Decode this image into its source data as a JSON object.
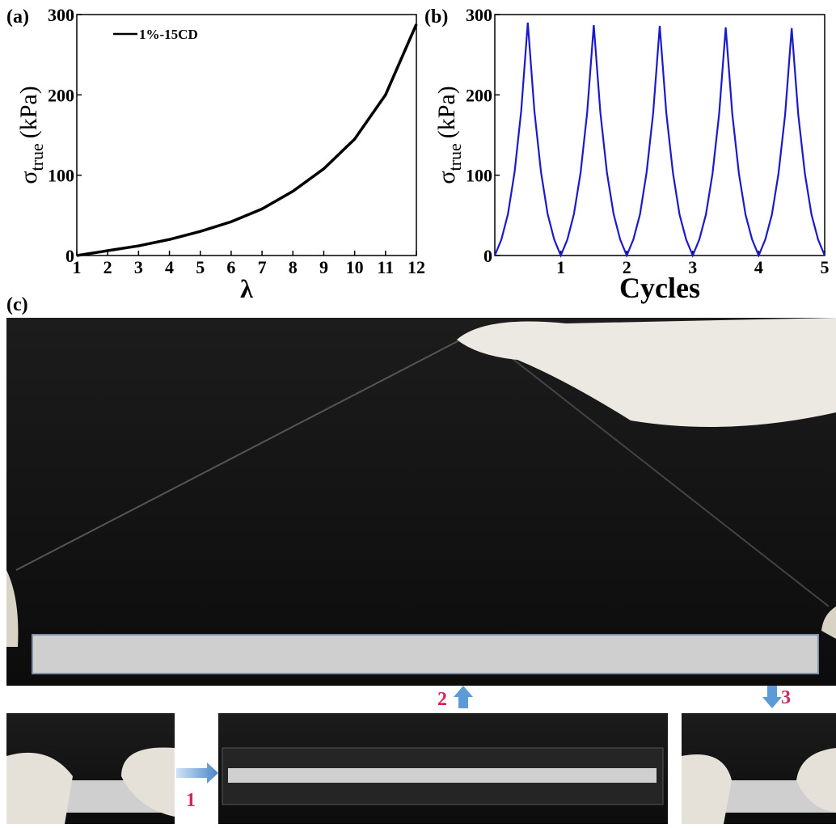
{
  "chart_data": [
    {
      "type": "line",
      "panel_label": "(a)",
      "xlabel": "λ",
      "ylabel": "σ",
      "ylabel_sub": "true",
      "ylabel_unit": "(kPa)",
      "x": [
        1,
        2,
        3,
        4,
        5,
        6,
        7,
        8,
        9,
        10,
        11,
        12
      ],
      "series": [
        {
          "name": "1%-15CD",
          "color": "#000000",
          "values": [
            0,
            6,
            12,
            20,
            30,
            42,
            58,
            80,
            108,
            145,
            200,
            288
          ]
        }
      ],
      "xlim": [
        1,
        12
      ],
      "xticks": [
        1,
        2,
        3,
        4,
        5,
        6,
        7,
        8,
        9,
        10,
        11,
        12
      ],
      "ylim": [
        0,
        300
      ],
      "yticks": [
        0,
        100,
        200,
        300
      ],
      "legend": "upper left"
    },
    {
      "type": "line",
      "panel_label": "(b)",
      "xlabel": "Cycles",
      "ylabel": "σ",
      "ylabel_sub": "true",
      "ylabel_unit": "(kPa)",
      "x": [
        0,
        0.1,
        0.2,
        0.3,
        0.4,
        0.5,
        0.6,
        0.7,
        0.8,
        0.9,
        1,
        1.1,
        1.2,
        1.3,
        1.4,
        1.5,
        1.6,
        1.7,
        1.8,
        1.9,
        2,
        2.1,
        2.2,
        2.3,
        2.4,
        2.5,
        2.6,
        2.7,
        2.8,
        2.9,
        3,
        3.1,
        3.2,
        3.3,
        3.4,
        3.5,
        3.6,
        3.7,
        3.8,
        3.9,
        4,
        4.1,
        4.2,
        4.3,
        4.4,
        4.5,
        4.6,
        4.7,
        4.8,
        4.9,
        5
      ],
      "series": [
        {
          "color": "#1a1acc",
          "values": [
            0,
            20,
            52,
            104,
            180,
            290,
            180,
            104,
            52,
            20,
            0,
            20,
            52,
            103,
            178,
            287,
            178,
            103,
            52,
            20,
            0,
            20,
            51,
            103,
            177,
            286,
            177,
            103,
            51,
            20,
            0,
            20,
            51,
            102,
            176,
            284,
            176,
            102,
            51,
            20,
            0,
            20,
            51,
            102,
            175,
            283,
            175,
            102,
            51,
            20,
            0
          ]
        }
      ],
      "xlim": [
        0,
        5
      ],
      "xticks": [
        1,
        2,
        3,
        4,
        5
      ],
      "ylim": [
        0,
        300
      ],
      "yticks": [
        0,
        100,
        200,
        300
      ]
    }
  ],
  "panel_c": {
    "label": "(c)",
    "steps": [
      "1",
      "2",
      "3"
    ]
  }
}
